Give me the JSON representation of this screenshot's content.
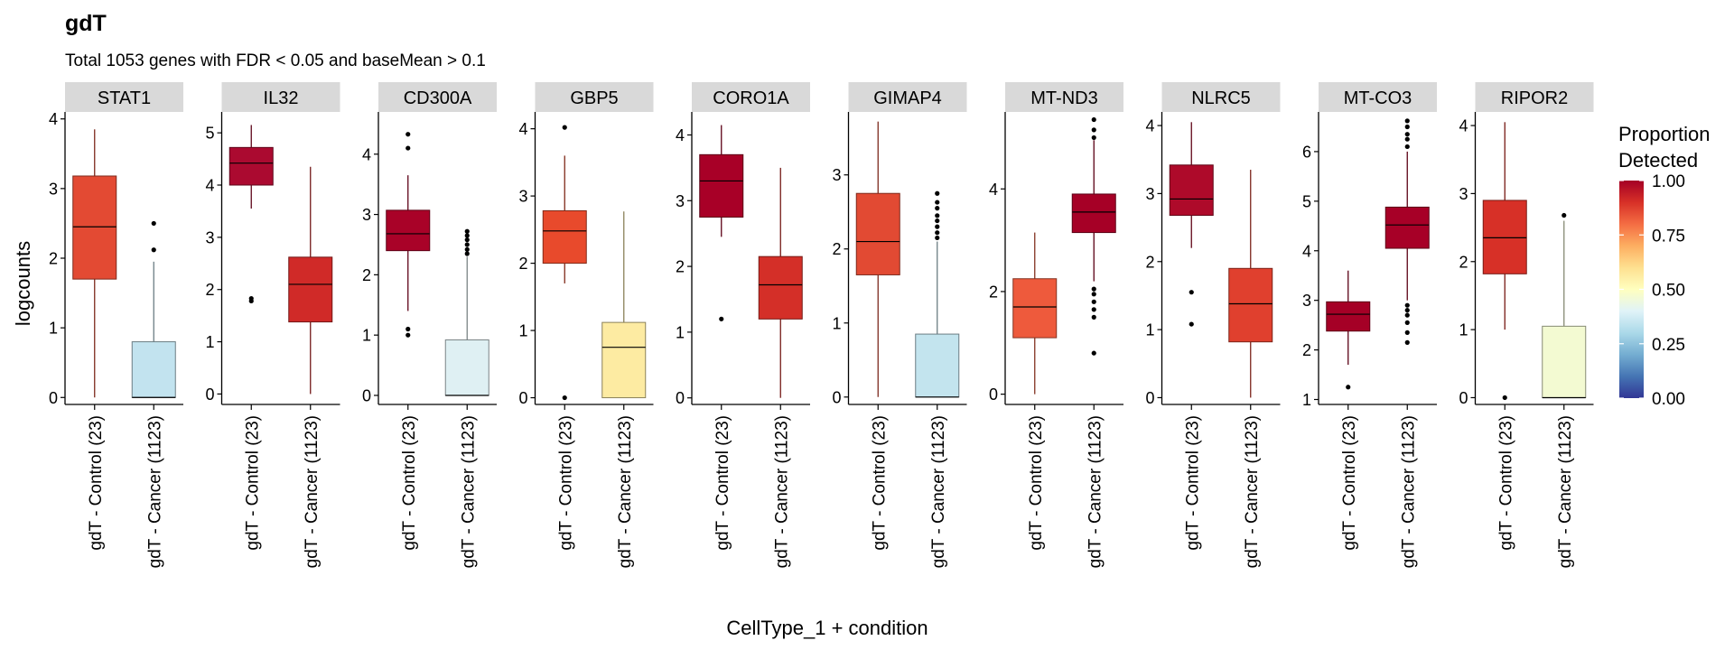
{
  "chart_data": {
    "type": "box",
    "title": "gdT",
    "subtitle": "Total 1053 genes with FDR < 0.05 and baseMean > 0.1",
    "xlabel": "CellType_1 + condition",
    "ylabel": "logcounts",
    "categories": [
      "gdT - Control (23)",
      "gdT - Cancer (1123)"
    ],
    "legend": {
      "title_lines": [
        "Proportion",
        "Detected"
      ],
      "ticks": [
        "1.00",
        "0.75",
        "0.50",
        "0.25",
        "0.00"
      ],
      "tick_values": [
        1.0,
        0.75,
        0.5,
        0.25,
        0.0
      ],
      "placement": "right",
      "colors": [
        "#313695",
        "#4575b4",
        "#74add1",
        "#abd9e9",
        "#e0f3f8",
        "#ffffbf",
        "#fee090",
        "#fdae61",
        "#f46d43",
        "#d73027",
        "#a50026"
      ]
    },
    "facet_header_bg": "#d9d9d9",
    "panels": [
      {
        "gene": "STAT1",
        "ylim": [
          -0.1,
          4.1
        ],
        "yticks": [
          0,
          1,
          2,
          3,
          4
        ],
        "yticklabels": [
          "0",
          "1",
          "2",
          "3",
          "4"
        ],
        "boxes": [
          {
            "q1": 1.7,
            "median": 2.45,
            "q3": 3.18,
            "wlo": 0.0,
            "whi": 3.85,
            "outliers": [],
            "fill": "#e34a33"
          },
          {
            "q1": 0.0,
            "median": 0.0,
            "q3": 0.8,
            "wlo": 0.0,
            "whi": 1.95,
            "outliers": [
              2.12,
              2.5
            ],
            "fill": "#c2e3ef"
          }
        ]
      },
      {
        "gene": "IL32",
        "ylim": [
          -0.2,
          5.4
        ],
        "yticks": [
          0,
          1,
          2,
          3,
          4,
          5
        ],
        "yticklabels": [
          "0",
          "1",
          "2",
          "3",
          "4",
          "5"
        ],
        "boxes": [
          {
            "q1": 4.0,
            "median": 4.42,
            "q3": 4.72,
            "wlo": 3.55,
            "whi": 5.15,
            "outliers": [
              1.78,
              1.83
            ],
            "fill": "#ab0a30"
          },
          {
            "q1": 1.38,
            "median": 2.1,
            "q3": 2.62,
            "wlo": 0.0,
            "whi": 4.35,
            "outliers": [],
            "fill": "#d02a28"
          }
        ]
      },
      {
        "gene": "CD300A",
        "ylim": [
          -0.15,
          4.7
        ],
        "yticks": [
          0,
          1,
          2,
          3,
          4
        ],
        "yticklabels": [
          "0",
          "1",
          "2",
          "3",
          "4"
        ],
        "boxes": [
          {
            "q1": 2.4,
            "median": 2.68,
            "q3": 3.07,
            "wlo": 1.4,
            "whi": 3.65,
            "outliers": [
              1.0,
              1.1,
              4.1,
              4.33
            ],
            "fill": "#a90228"
          },
          {
            "q1": 0.0,
            "median": 0.0,
            "q3": 0.92,
            "wlo": 0.0,
            "whi": 2.3,
            "outliers": [
              2.35,
              2.42,
              2.5,
              2.58,
              2.65,
              2.72
            ],
            "fill": "#dff0f3"
          }
        ]
      },
      {
        "gene": "GBP5",
        "ylim": [
          -0.1,
          4.25
        ],
        "yticks": [
          0,
          1,
          2,
          3,
          4
        ],
        "yticklabels": [
          "0",
          "1",
          "2",
          "3",
          "4"
        ],
        "boxes": [
          {
            "q1": 2.0,
            "median": 2.48,
            "q3": 2.78,
            "wlo": 1.7,
            "whi": 3.6,
            "outliers": [
              0.0,
              4.02
            ],
            "fill": "#e84a2c"
          },
          {
            "q1": 0.0,
            "median": 0.75,
            "q3": 1.12,
            "wlo": 0.0,
            "whi": 2.77,
            "outliers": [],
            "fill": "#fdeba2"
          }
        ]
      },
      {
        "gene": "CORO1A",
        "ylim": [
          -0.1,
          4.35
        ],
        "yticks": [
          0,
          1,
          2,
          3,
          4
        ],
        "yticklabels": [
          "0",
          "1",
          "2",
          "3",
          "4"
        ],
        "boxes": [
          {
            "q1": 2.75,
            "median": 3.3,
            "q3": 3.7,
            "wlo": 2.45,
            "whi": 4.15,
            "outliers": [
              1.2
            ],
            "fill": "#a80027"
          },
          {
            "q1": 1.2,
            "median": 1.72,
            "q3": 2.15,
            "wlo": 0.0,
            "whi": 3.5,
            "outliers": [],
            "fill": "#d42f28"
          }
        ]
      },
      {
        "gene": "GIMAP4",
        "ylim": [
          -0.1,
          3.85
        ],
        "yticks": [
          0,
          1,
          2,
          3
        ],
        "yticklabels": [
          "0",
          "1",
          "2",
          "3"
        ],
        "boxes": [
          {
            "q1": 1.65,
            "median": 2.1,
            "q3": 2.75,
            "wlo": 0.0,
            "whi": 3.72,
            "outliers": [],
            "fill": "#e24a33"
          },
          {
            "q1": 0.0,
            "median": 0.0,
            "q3": 0.85,
            "wlo": 0.0,
            "whi": 2.1,
            "outliers": [
              2.15,
              2.22,
              2.3,
              2.38,
              2.45,
              2.55,
              2.63,
              2.75
            ],
            "fill": "#c3e4ee"
          }
        ]
      },
      {
        "gene": "MT-ND3",
        "ylim": [
          -0.2,
          5.5
        ],
        "yticks": [
          0,
          2,
          4
        ],
        "yticklabels": [
          "0",
          "2",
          "4"
        ],
        "boxes": [
          {
            "q1": 1.1,
            "median": 1.7,
            "q3": 2.25,
            "wlo": 0.0,
            "whi": 3.15,
            "outliers": [],
            "fill": "#ee5a3c"
          },
          {
            "q1": 3.15,
            "median": 3.55,
            "q3": 3.9,
            "wlo": 2.2,
            "whi": 4.95,
            "outliers": [
              0.8,
              1.5,
              1.65,
              1.8,
              1.95,
              2.05,
              5.0,
              5.15,
              5.35
            ],
            "fill": "#a60026"
          }
        ]
      },
      {
        "gene": "NLRC5",
        "ylim": [
          -0.1,
          4.2
        ],
        "yticks": [
          0,
          1,
          2,
          3,
          4
        ],
        "yticklabels": [
          "0",
          "1",
          "2",
          "3",
          "4"
        ],
        "boxes": [
          {
            "q1": 2.68,
            "median": 2.92,
            "q3": 3.42,
            "wlo": 2.2,
            "whi": 4.05,
            "outliers": [
              1.08,
              1.55
            ],
            "fill": "#ae0a2a"
          },
          {
            "q1": 0.82,
            "median": 1.38,
            "q3": 1.9,
            "wlo": 0.0,
            "whi": 3.35,
            "outliers": [],
            "fill": "#e0402e"
          }
        ]
      },
      {
        "gene": "MT-CO3",
        "ylim": [
          0.9,
          6.8
        ],
        "yticks": [
          1,
          2,
          3,
          4,
          5,
          6
        ],
        "yticklabels": [
          "1",
          "2",
          "3",
          "4",
          "5",
          "6"
        ],
        "boxes": [
          {
            "q1": 2.38,
            "median": 2.72,
            "q3": 2.97,
            "wlo": 1.7,
            "whi": 3.6,
            "outliers": [
              1.25
            ],
            "fill": "#a50026"
          },
          {
            "q1": 4.05,
            "median": 4.52,
            "q3": 4.88,
            "wlo": 3.0,
            "whi": 6.0,
            "outliers": [
              2.15,
              2.35,
              2.55,
              2.7,
              2.8,
              2.9,
              6.1,
              6.25,
              6.35,
              6.5,
              6.62
            ],
            "fill": "#a70027"
          }
        ]
      },
      {
        "gene": "RIPOR2",
        "ylim": [
          -0.1,
          4.2
        ],
        "yticks": [
          0,
          1,
          2,
          3,
          4
        ],
        "yticklabels": [
          "0",
          "1",
          "2",
          "3",
          "4"
        ],
        "boxes": [
          {
            "q1": 1.82,
            "median": 2.35,
            "q3": 2.9,
            "wlo": 1.0,
            "whi": 4.05,
            "outliers": [
              0.0
            ],
            "fill": "#d73027"
          },
          {
            "q1": 0.0,
            "median": 0.0,
            "q3": 1.05,
            "wlo": 0.0,
            "whi": 2.6,
            "outliers": [
              2.68
            ],
            "fill": "#f3fad2"
          }
        ]
      }
    ]
  }
}
